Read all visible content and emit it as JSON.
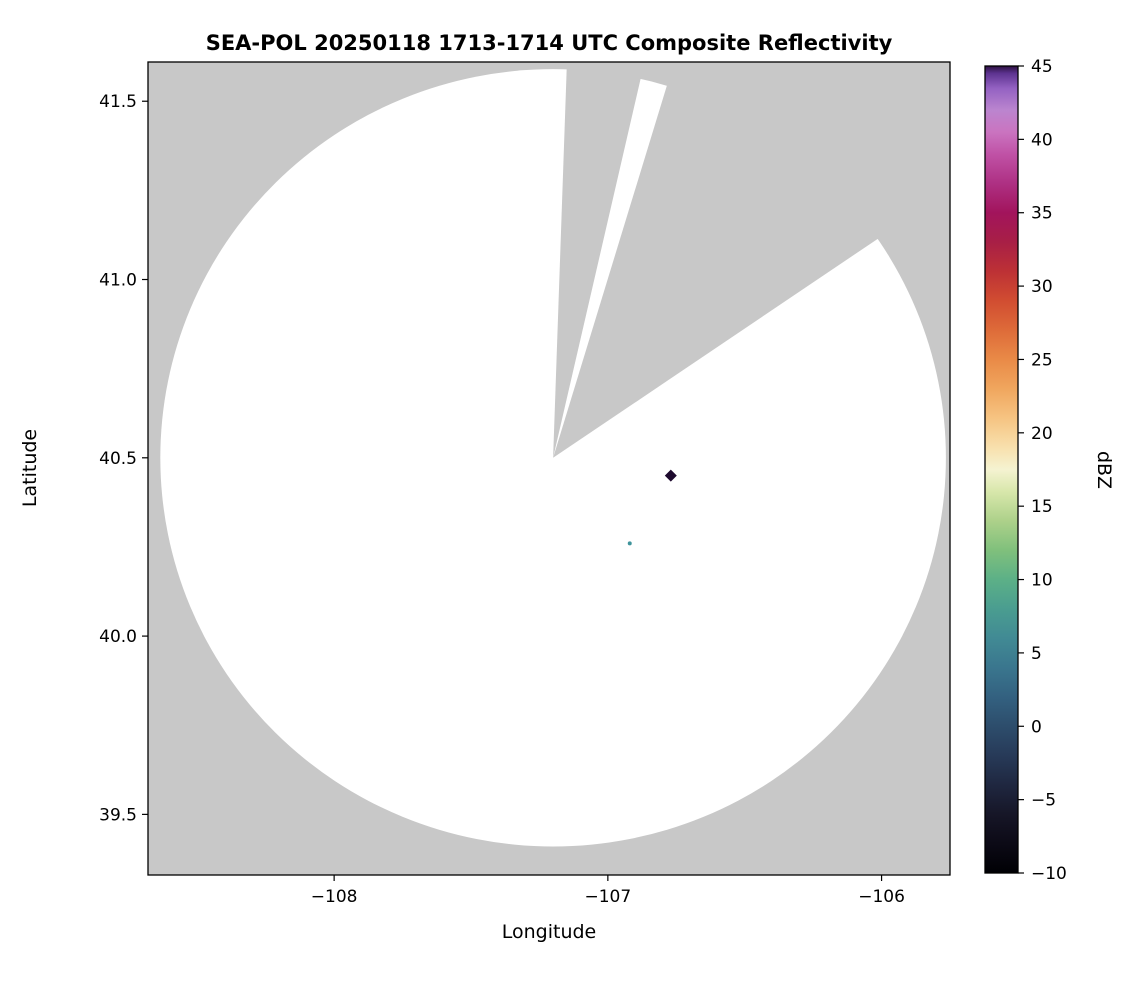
{
  "chart_data": {
    "type": "radar_composite_reflectivity_ppi",
    "title": "SEA-POL 20250118 1713-1714 UTC Composite Reflectivity",
    "xlabel": "Longitude",
    "ylabel": "Latitude",
    "colorbar_label": "dBZ",
    "xlim": [
      -108.68,
      -105.75
    ],
    "ylim": [
      39.33,
      41.61
    ],
    "xticks": [
      {
        "value": -108,
        "label": "−108"
      },
      {
        "value": -107,
        "label": "−107"
      },
      {
        "value": -106,
        "label": "−106"
      }
    ],
    "yticks": [
      {
        "value": 39.5,
        "label": "39.5"
      },
      {
        "value": 40.0,
        "label": "40.0"
      },
      {
        "value": 40.5,
        "label": "40.5"
      },
      {
        "value": 41.0,
        "label": "41.0"
      },
      {
        "value": 41.5,
        "label": "41.5"
      }
    ],
    "no_data_color": "#c8c8c8",
    "coverage": {
      "center_lon": -107.2,
      "center_lat": 40.5,
      "radius_lon_deg": 1.435,
      "radius_lat_deg": 1.09,
      "fill": "#ffffff",
      "missing_sectors_deg": [
        {
          "start_az": 2,
          "end_az": 13
        },
        {
          "start_az": 17,
          "end_az": 56
        }
      ]
    },
    "points": [
      {
        "lon": -106.77,
        "lat": 40.45,
        "dbz": 45,
        "shape": "diamond",
        "size": 6,
        "color": "#1e0a2e"
      },
      {
        "lon": -106.92,
        "lat": 40.26,
        "dbz": 6,
        "shape": "dot",
        "size": 2,
        "color": "#3f949b"
      }
    ],
    "colorbar": {
      "min": -10,
      "max": 45,
      "ticks": [
        {
          "value": 45,
          "label": "45"
        },
        {
          "value": 40,
          "label": "40"
        },
        {
          "value": 35,
          "label": "35"
        },
        {
          "value": 30,
          "label": "30"
        },
        {
          "value": 25,
          "label": "25"
        },
        {
          "value": 20,
          "label": "20"
        },
        {
          "value": 15,
          "label": "15"
        },
        {
          "value": 10,
          "label": "10"
        },
        {
          "value": 5,
          "label": "5"
        },
        {
          "value": 0,
          "label": "0"
        },
        {
          "value": -5,
          "label": "−5"
        },
        {
          "value": -10,
          "label": "−10"
        }
      ],
      "gradient_stops": [
        [
          -10,
          "#000004"
        ],
        [
          -8,
          "#0c0a16"
        ],
        [
          -6,
          "#161627"
        ],
        [
          -4,
          "#1f2740"
        ],
        [
          -2,
          "#273a58"
        ],
        [
          0,
          "#2d4d6c"
        ],
        [
          2,
          "#336180"
        ],
        [
          4,
          "#3a768e"
        ],
        [
          6,
          "#418a94"
        ],
        [
          8,
          "#4a9d90"
        ],
        [
          10,
          "#5cb087"
        ],
        [
          12,
          "#80c07c"
        ],
        [
          14,
          "#add18a"
        ],
        [
          16,
          "#d8e7ab"
        ],
        [
          17.5,
          "#f5f3d1"
        ],
        [
          19,
          "#f8e0ad"
        ],
        [
          21,
          "#f6c482"
        ],
        [
          23,
          "#f0a65e"
        ],
        [
          25,
          "#e98a47"
        ],
        [
          27,
          "#de6b39"
        ],
        [
          29,
          "#d14d31"
        ],
        [
          31,
          "#bd3135"
        ],
        [
          33,
          "#a81f46"
        ],
        [
          35,
          "#a2145c"
        ],
        [
          37,
          "#ae3083"
        ],
        [
          39,
          "#c052a6"
        ],
        [
          40.5,
          "#ca74c0"
        ],
        [
          42,
          "#bb85cf"
        ],
        [
          43.5,
          "#9361c2"
        ],
        [
          44.5,
          "#5d3390"
        ],
        [
          45,
          "#2c1040"
        ]
      ]
    }
  }
}
